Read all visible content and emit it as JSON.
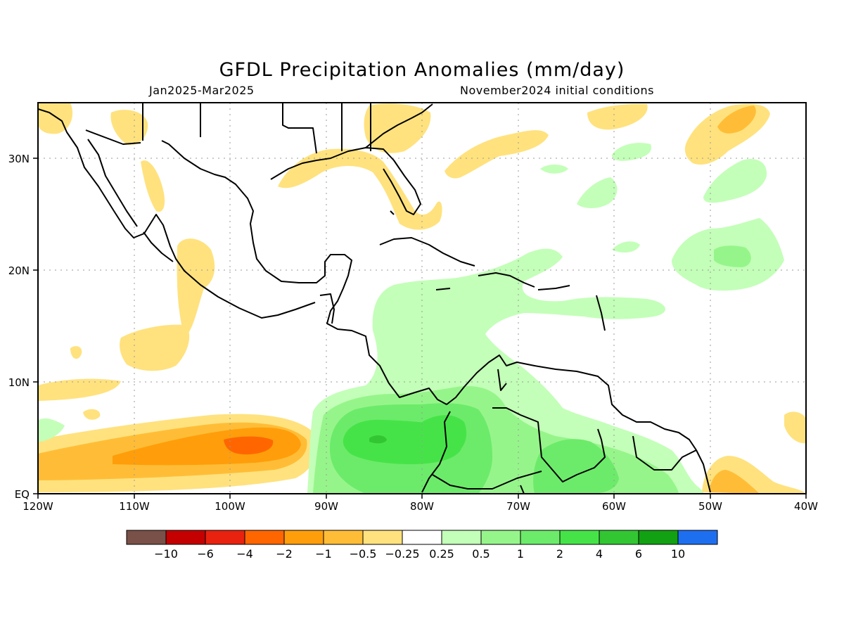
{
  "title": "GFDL Precipitation Anomalies (mm/day)",
  "subtitle_left": "Jan2025-Mar2025",
  "subtitle_right": "November2024 initial conditions",
  "lat_labels": [
    "30N",
    "20N",
    "10N",
    "EQ"
  ],
  "lon_labels": [
    "120W",
    "110W",
    "100W",
    "90W",
    "80W",
    "70W",
    "60W",
    "50W",
    "40W"
  ],
  "colorbar": {
    "colors": [
      "#7a5148",
      "#c40000",
      "#e8220e",
      "#ff6600",
      "#ff9e0a",
      "#ffbd37",
      "#ffe27e",
      "#ffffff",
      "#c3ffb8",
      "#96f58a",
      "#6ceb6a",
      "#46e348",
      "#33c633",
      "#12a112",
      "#1e6ff0"
    ],
    "labels": [
      "-10",
      "-6",
      "-4",
      "-2",
      "-1",
      "-0.5",
      "-0.25",
      "0.25",
      "0.5",
      "1",
      "2",
      "4",
      "6",
      "10"
    ]
  }
}
